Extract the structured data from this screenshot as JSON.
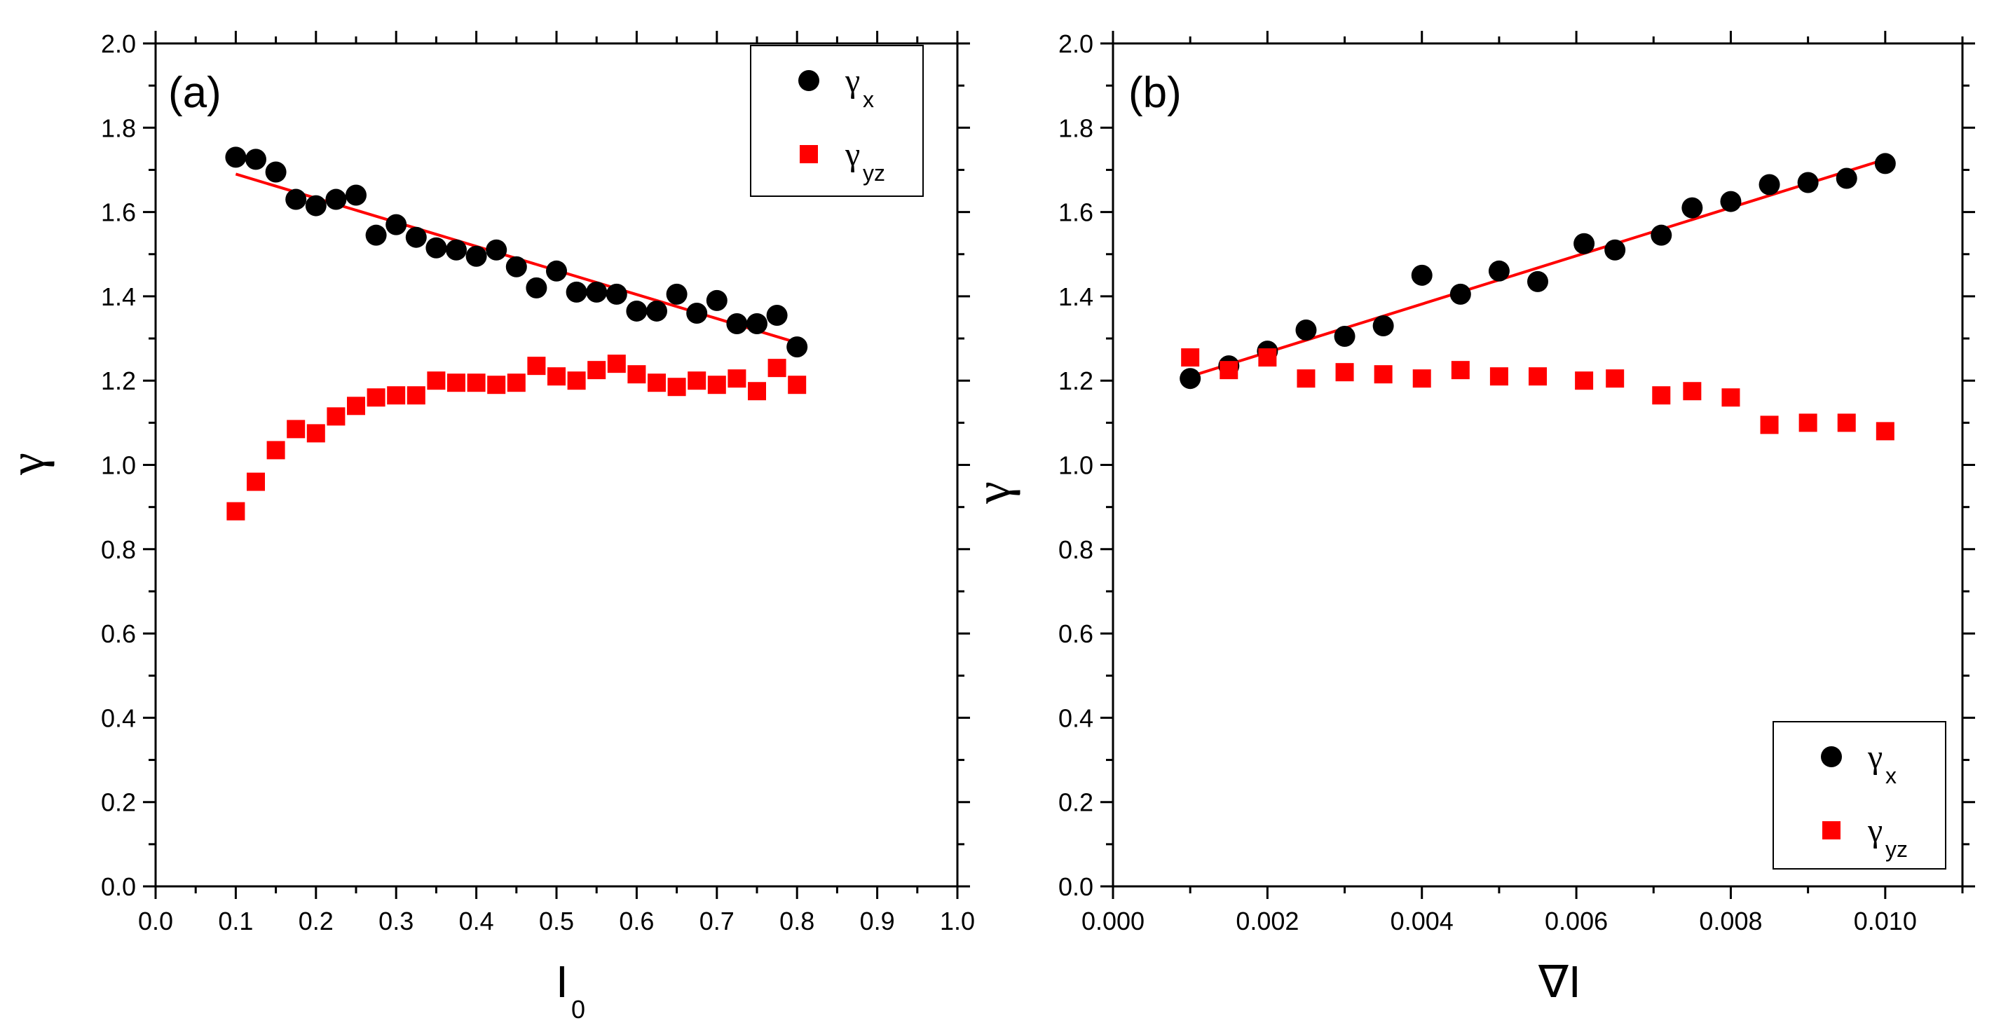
{
  "chart_data": [
    {
      "id": "a",
      "type": "scatter",
      "panel_label": "(a)",
      "xlabel_main": "I",
      "xlabel_sub": "0",
      "ylabel": "γ",
      "xlim": [
        0.0,
        1.0
      ],
      "ylim": [
        0.0,
        2.0
      ],
      "x_ticks": [
        0.0,
        0.1,
        0.2,
        0.3,
        0.4,
        0.5,
        0.6,
        0.7,
        0.8,
        0.9,
        1.0
      ],
      "x_tick_labels": [
        "0.0",
        "0.1",
        "0.2",
        "0.3",
        "0.4",
        "0.5",
        "0.6",
        "0.7",
        "0.8",
        "0.9",
        "1.0"
      ],
      "y_ticks": [
        0.0,
        0.2,
        0.4,
        0.6,
        0.8,
        1.0,
        1.2,
        1.4,
        1.6,
        1.8,
        2.0
      ],
      "y_tick_labels": [
        "0.0",
        "0.2",
        "0.4",
        "0.6",
        "0.8",
        "1.0",
        "1.2",
        "1.4",
        "1.6",
        "1.8",
        "2.0"
      ],
      "legend_position": "top-right",
      "series": [
        {
          "name": "γx",
          "symbol": "γ",
          "subscript": "x",
          "marker": "circle",
          "color": "#000000",
          "x": [
            0.1,
            0.125,
            0.15,
            0.175,
            0.2,
            0.225,
            0.25,
            0.275,
            0.3,
            0.325,
            0.35,
            0.375,
            0.4,
            0.425,
            0.45,
            0.475,
            0.5,
            0.525,
            0.55,
            0.575,
            0.6,
            0.625,
            0.65,
            0.675,
            0.7,
            0.725,
            0.75,
            0.775,
            0.8
          ],
          "y": [
            1.73,
            1.725,
            1.695,
            1.63,
            1.615,
            1.63,
            1.64,
            1.545,
            1.57,
            1.54,
            1.515,
            1.51,
            1.495,
            1.51,
            1.47,
            1.42,
            1.46,
            1.41,
            1.41,
            1.405,
            1.365,
            1.365,
            1.405,
            1.36,
            1.39,
            1.335,
            1.335,
            1.355,
            1.28
          ]
        },
        {
          "name": "γyz",
          "symbol": "γ",
          "subscript": "yz",
          "marker": "square",
          "color": "#ff0000",
          "x": [
            0.1,
            0.125,
            0.15,
            0.175,
            0.2,
            0.225,
            0.25,
            0.275,
            0.3,
            0.325,
            0.35,
            0.375,
            0.4,
            0.425,
            0.45,
            0.475,
            0.5,
            0.525,
            0.55,
            0.575,
            0.6,
            0.625,
            0.65,
            0.675,
            0.7,
            0.725,
            0.75,
            0.775,
            0.8
          ],
          "y": [
            0.89,
            0.96,
            1.035,
            1.085,
            1.075,
            1.115,
            1.14,
            1.16,
            1.165,
            1.165,
            1.2,
            1.195,
            1.195,
            1.19,
            1.195,
            1.235,
            1.21,
            1.2,
            1.225,
            1.24,
            1.215,
            1.195,
            1.185,
            1.2,
            1.19,
            1.205,
            1.175,
            1.23,
            1.19
          ]
        }
      ],
      "fit_line": {
        "color": "#ff0000",
        "x": [
          0.1,
          0.8
        ],
        "y": [
          1.69,
          1.29
        ]
      }
    },
    {
      "id": "b",
      "type": "scatter",
      "panel_label": "(b)",
      "xlabel_main": "∇I",
      "xlabel_sub": "",
      "ylabel": "γ",
      "xlim": [
        0.0,
        0.011
      ],
      "ylim": [
        0.0,
        2.0
      ],
      "x_ticks": [
        0.0,
        0.002,
        0.004,
        0.006,
        0.008,
        0.01
      ],
      "x_tick_labels": [
        "0.000",
        "0.002",
        "0.004",
        "0.006",
        "0.008",
        "0.010"
      ],
      "y_ticks": [
        0.0,
        0.2,
        0.4,
        0.6,
        0.8,
        1.0,
        1.2,
        1.4,
        1.6,
        1.8,
        2.0
      ],
      "y_tick_labels": [
        "0.0",
        "0.2",
        "0.4",
        "0.6",
        "0.8",
        "1.0",
        "1.2",
        "1.4",
        "1.6",
        "1.8",
        "2.0"
      ],
      "legend_position": "bottom-right",
      "series": [
        {
          "name": "γx",
          "symbol": "γ",
          "subscript": "x",
          "marker": "circle",
          "color": "#000000",
          "x": [
            0.001,
            0.0015,
            0.002,
            0.0025,
            0.003,
            0.0035,
            0.004,
            0.0045,
            0.005,
            0.0055,
            0.0061,
            0.0065,
            0.0071,
            0.0075,
            0.008,
            0.0085,
            0.009,
            0.0095,
            0.01
          ],
          "y": [
            1.205,
            1.235,
            1.27,
            1.32,
            1.305,
            1.33,
            1.45,
            1.405,
            1.46,
            1.435,
            1.525,
            1.51,
            1.545,
            1.61,
            1.625,
            1.665,
            1.67,
            1.68,
            1.715
          ]
        },
        {
          "name": "γyz",
          "symbol": "γ",
          "subscript": "yz",
          "marker": "square",
          "color": "#ff0000",
          "x": [
            0.001,
            0.0015,
            0.002,
            0.0025,
            0.003,
            0.0035,
            0.004,
            0.0045,
            0.005,
            0.0055,
            0.0061,
            0.0065,
            0.0071,
            0.0075,
            0.008,
            0.0085,
            0.009,
            0.0095,
            0.01
          ],
          "y": [
            1.255,
            1.225,
            1.255,
            1.205,
            1.22,
            1.215,
            1.205,
            1.225,
            1.21,
            1.21,
            1.2,
            1.205,
            1.165,
            1.175,
            1.16,
            1.095,
            1.1,
            1.1,
            1.08
          ]
        }
      ],
      "fit_line": {
        "color": "#ff0000",
        "x": [
          0.001,
          0.01
        ],
        "y": [
          1.21,
          1.725
        ]
      }
    }
  ]
}
